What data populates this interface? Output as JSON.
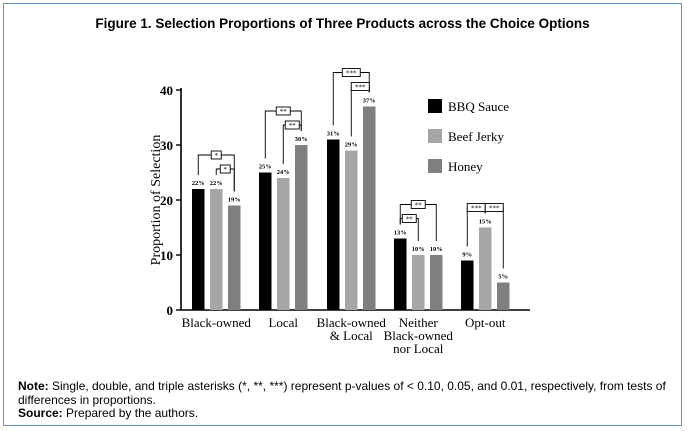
{
  "title": "Figure 1. Selection Proportions of Three Products across the Choice Options",
  "note": {
    "label": "Note:",
    "text": "Single, double, and triple asterisks (*, **, ***) represent p-values of < 0.10, 0.05, and 0.01, respectively, from tests of differences in proportions."
  },
  "source": {
    "label": "Source:",
    "text": "Prepared by the authors."
  },
  "chart_data": {
    "type": "bar",
    "ylabel": "Proportion of Selection",
    "ylim": [
      0,
      40
    ],
    "yticks": [
      0,
      10,
      20,
      30,
      40
    ],
    "legend_position": "right",
    "categories": [
      [
        "Black-owned"
      ],
      [
        "Local"
      ],
      [
        "Black-owned",
        "& Local"
      ],
      [
        "Neither",
        "Black-owned",
        "nor Local"
      ],
      [
        "Opt-out"
      ]
    ],
    "series": [
      {
        "name": "BBQ Sauce",
        "color": "#000000",
        "values": [
          22,
          25,
          31,
          13,
          9
        ],
        "labels": [
          "22%",
          "25%",
          "31%",
          "13%",
          "9%"
        ]
      },
      {
        "name": "Beef Jerky",
        "color": "#a6a6a6",
        "values": [
          22,
          24,
          29,
          10,
          15
        ],
        "labels": [
          "22%",
          "24%",
          "29%",
          "10%",
          "15%"
        ]
      },
      {
        "name": "Honey",
        "color": "#7f7f7f",
        "values": [
          19,
          30,
          37,
          10,
          5
        ],
        "labels": [
          "19%",
          "30%",
          "37%",
          "10%",
          "5%"
        ]
      }
    ],
    "significance": [
      {
        "category": 0,
        "from": 0,
        "to": 2,
        "stars": "*"
      },
      {
        "category": 0,
        "from": 1,
        "to": 2,
        "stars": "*"
      },
      {
        "category": 1,
        "from": 0,
        "to": 2,
        "stars": "**"
      },
      {
        "category": 1,
        "from": 1,
        "to": 2,
        "stars": "**"
      },
      {
        "category": 2,
        "from": 0,
        "to": 2,
        "stars": "***"
      },
      {
        "category": 2,
        "from": 1,
        "to": 2,
        "stars": "***"
      },
      {
        "category": 3,
        "from": 0,
        "to": 2,
        "stars": "**"
      },
      {
        "category": 3,
        "from": 0,
        "to": 1,
        "stars": "**"
      },
      {
        "category": 4,
        "from": 0,
        "to": 1,
        "stars": "***"
      },
      {
        "category": 4,
        "from": 1,
        "to": 2,
        "stars": "***"
      }
    ]
  }
}
